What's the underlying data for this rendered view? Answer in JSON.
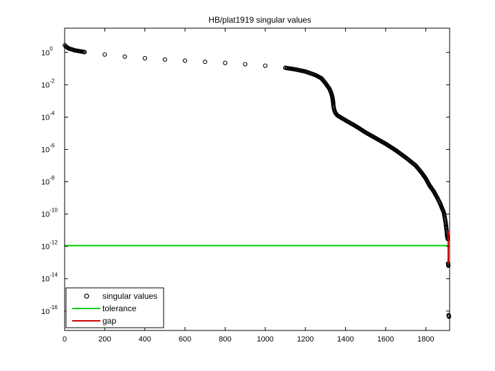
{
  "chart_data": {
    "type": "scatter",
    "title": "HB/plat1919 singular values",
    "xlabel": "",
    "ylabel": "",
    "y_scale": "log",
    "xlim": [
      0,
      1919
    ],
    "ylim_exponent": [
      -17.2,
      1.5
    ],
    "x_ticks": [
      0,
      200,
      400,
      600,
      800,
      1000,
      1200,
      1400,
      1600,
      1800
    ],
    "x_tick_labels": [
      "0",
      "200",
      "400",
      "600",
      "800",
      "1000",
      "1200",
      "1400",
      "1600",
      "1800"
    ],
    "y_tick_exponents": [
      -16,
      -14,
      -12,
      -10,
      -8,
      -6,
      -4,
      -2,
      0
    ],
    "y_tick_labels": [
      {
        "base": "10",
        "exp": "-16"
      },
      {
        "base": "10",
        "exp": "-14"
      },
      {
        "base": "10",
        "exp": "-12"
      },
      {
        "base": "10",
        "exp": "-10"
      },
      {
        "base": "10",
        "exp": "-8"
      },
      {
        "base": "10",
        "exp": "-6"
      },
      {
        "base": "10",
        "exp": "-4"
      },
      {
        "base": "10",
        "exp": "-2"
      },
      {
        "base": "10",
        "exp": "0"
      }
    ],
    "series": [
      {
        "name": "singular values",
        "marker": "circle",
        "color": "#000000",
        "x": [
          1,
          5,
          20,
          50,
          100,
          200,
          300,
          400,
          500,
          600,
          700,
          800,
          900,
          1000,
          1100,
          1150,
          1200,
          1250,
          1280,
          1300,
          1320,
          1330,
          1335,
          1338,
          1340,
          1342,
          1345,
          1350,
          1360,
          1380,
          1400,
          1450,
          1500,
          1550,
          1600,
          1650,
          1700,
          1750,
          1780,
          1800,
          1820,
          1840,
          1860,
          1870,
          1880,
          1885,
          1890,
          1893,
          1896,
          1898,
          1900,
          1902,
          1904,
          1905,
          1906,
          1907,
          1908,
          1909,
          1910,
          1911,
          1912,
          1913,
          1914,
          1915,
          1916
        ],
        "y_exponent": [
          0.45,
          0.38,
          0.25,
          0.13,
          0.02,
          -0.13,
          -0.26,
          -0.36,
          -0.44,
          -0.51,
          -0.58,
          -0.65,
          -0.73,
          -0.82,
          -0.95,
          -1.05,
          -1.18,
          -1.4,
          -1.6,
          -1.9,
          -2.25,
          -2.55,
          -2.8,
          -3.05,
          -3.3,
          -3.45,
          -3.6,
          -3.75,
          -3.9,
          -4.05,
          -4.2,
          -4.55,
          -4.95,
          -5.3,
          -5.65,
          -6.05,
          -6.5,
          -7.0,
          -7.45,
          -7.8,
          -8.25,
          -8.6,
          -9.05,
          -9.3,
          -9.6,
          -9.75,
          -9.9,
          -10.1,
          -10.3,
          -10.45,
          -10.6,
          -10.85,
          -11.0,
          -11.15,
          -11.3,
          -11.4,
          -11.45,
          -11.5,
          -11.55,
          -13.05,
          -13.1,
          -13.2,
          -16.25,
          -16.3,
          -16.35
        ]
      },
      {
        "name": "tolerance",
        "color": "#00cc00",
        "x": [
          0,
          1916
        ],
        "y_exponent": [
          -11.95,
          -11.95
        ]
      },
      {
        "name": "gap",
        "color": "#cc0000",
        "x": [
          1912,
          1912
        ],
        "y_exponent": [
          -11.05,
          -13.05
        ]
      }
    ],
    "legend": {
      "position": "bottom-left",
      "entries": [
        "singular values",
        "tolerance",
        "gap"
      ]
    },
    "grid": false
  }
}
